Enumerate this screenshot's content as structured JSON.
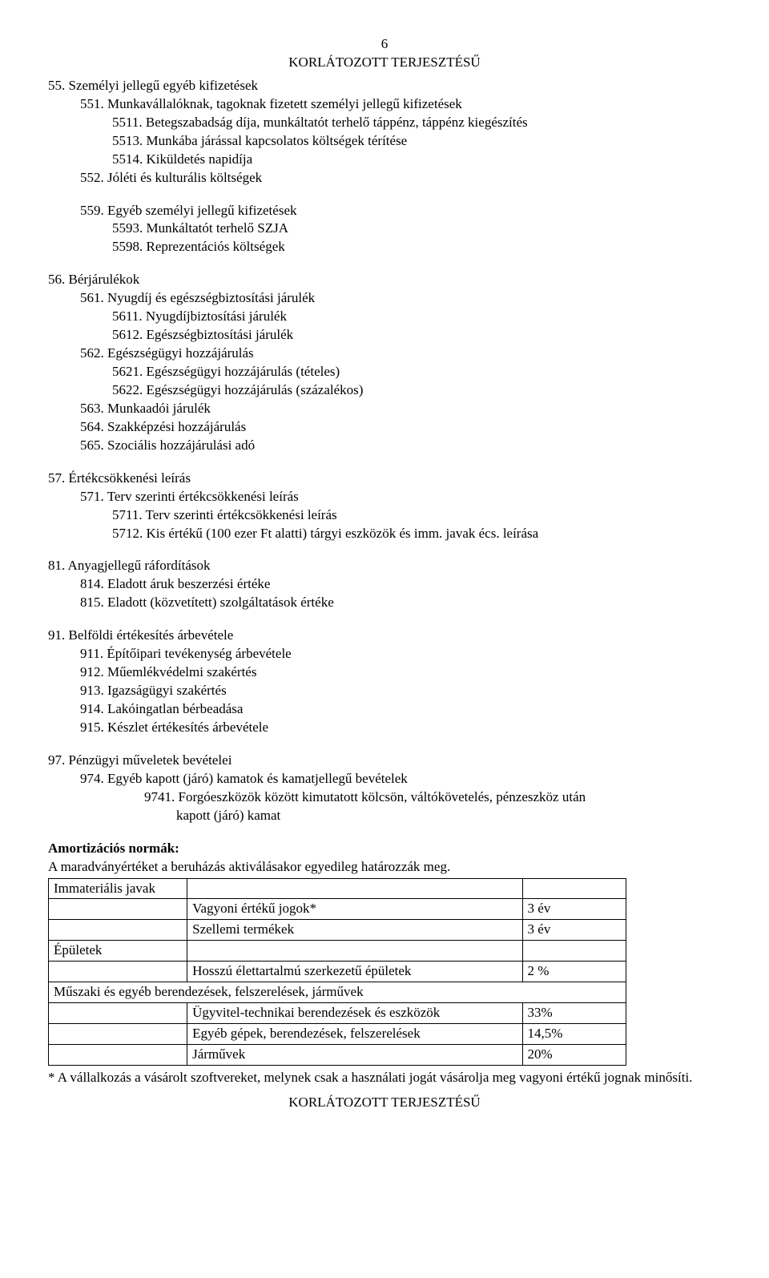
{
  "page_number": "6",
  "header": "KORLÁTOZOTT TERJESZTÉSŰ",
  "footer": "KORLÁTOZOTT TERJESZTÉSŰ",
  "s55": {
    "title": "55. Személyi jellegű egyéb kifizetések",
    "i551": "551. Munkavállalóknak, tagoknak fizetett személyi jellegű kifizetések",
    "i5511": "5511. Betegszabadság díja, munkáltatót terhelő táppénz, táppénz kiegészítés",
    "i5513": "5513. Munkába járással kapcsolatos költségek térítése",
    "i5514": "5514. Kiküldetés napidíja",
    "i552": "552. Jóléti és kulturális költségek",
    "i559": "559. Egyéb személyi jellegű kifizetések",
    "i5593": "5593. Munkáltatót terhelő SZJA",
    "i5598": "5598. Reprezentációs költségek"
  },
  "s56": {
    "title": "56. Bérjárulékok",
    "i561": "561. Nyugdíj és egészségbiztosítási járulék",
    "i5611": "5611. Nyugdíjbiztosítási járulék",
    "i5612": "5612. Egészségbiztosítási járulék",
    "i562": "562. Egészségügyi hozzájárulás",
    "i5621": "5621. Egészségügyi hozzájárulás (tételes)",
    "i5622": "5622. Egészségügyi hozzájárulás (százalékos)",
    "i563": "563. Munkaadói járulék",
    "i564": "564. Szakképzési hozzájárulás",
    "i565": "565. Szociális hozzájárulási adó"
  },
  "s57": {
    "title": "57. Értékcsökkenési leírás",
    "i571": "571. Terv szerinti értékcsökkenési leírás",
    "i5711": "5711. Terv szerinti értékcsökkenési leírás",
    "i5712": "5712. Kis értékű (100 ezer Ft alatti) tárgyi eszközök és imm. javak écs. leírása"
  },
  "s81": {
    "title": "81. Anyagjellegű ráfordítások",
    "i814": "814. Eladott áruk beszerzési értéke",
    "i815": "815. Eladott (közvetített) szolgáltatások értéke"
  },
  "s91": {
    "title": "91. Belföldi értékesítés árbevétele",
    "i911": "911. Építőipari tevékenység árbevétele",
    "i912": "912. Műemlékvédelmi szakértés",
    "i913": "913. Igazságügyi szakértés",
    "i914": "914. Lakóingatlan bérbeadása",
    "i915": "915. Készlet értékesítés árbevétele"
  },
  "s97": {
    "title": "97. Pénzügyi műveletek bevételei",
    "i974": "974. Egyéb kapott (járó) kamatok és kamatjellegű bevételek",
    "i9741a": "9741. Forgóeszközök között kimutatott kölcsön, váltókövetelés, pénzeszköz után",
    "i9741b": "kapott (járó) kamat"
  },
  "amort": {
    "heading": "Amortizációs normák:",
    "intro": "A maradványértéket a beruházás aktiválásakor egyedileg határozzák meg.",
    "cat_immat": "Immateriális javak",
    "row_vagyoni": "Vagyoni értékű jogok*",
    "row_vagyoni_val": "3 év",
    "row_szellemi": "Szellemi termékek",
    "row_szellemi_val": "3 év",
    "cat_epuletek": "Épületek",
    "row_hosszu": "Hosszú élettartalmú szerkezetű épületek",
    "row_hosszu_val": "2 %",
    "cat_muszaki": "Műszaki és egyéb berendezések, felszerelések, járművek",
    "row_ugyvitel": "Ügyvitel-technikai berendezések és eszközök",
    "row_ugyvitel_val": "33%",
    "row_egyeb": "Egyéb gépek, berendezések, felszerelések",
    "row_egyeb_val": "14,5%",
    "row_jarmuvek": "Járművek",
    "row_jarmuvek_val": "20%"
  },
  "footnote": "* A vállalkozás a vásárolt szoftvereket, melynek csak a használati jogát vásárolja meg vagyoni értékű jognak minősíti."
}
